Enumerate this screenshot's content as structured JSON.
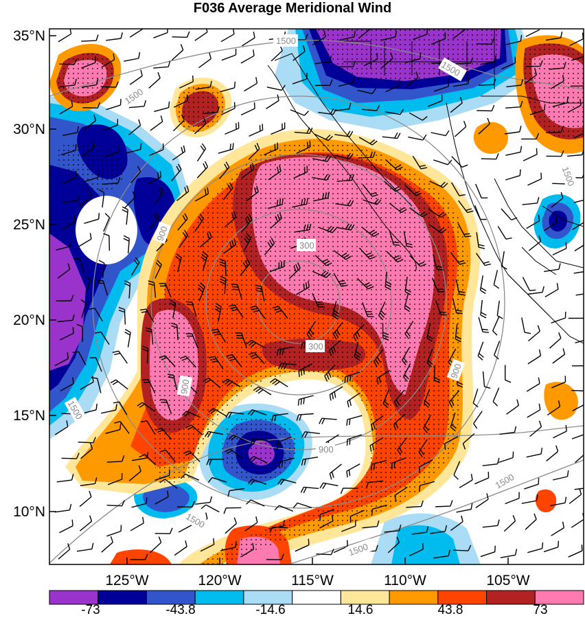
{
  "title": "F036 Average Meridional Wind",
  "lat_labels": [
    "35°N",
    "30°N",
    "25°N",
    "20°N",
    "15°N",
    "10°N"
  ],
  "lon_labels": [
    "125°W",
    "120°W",
    "115°W",
    "110°W",
    "105°W"
  ],
  "colorbar": {
    "labels": [
      "-73",
      "-43.8",
      "-14.6",
      "14.6",
      "43.8",
      "73"
    ],
    "colors": [
      "#9933cc",
      "#000099",
      "#3355cc",
      "#00bbee",
      "#aaddf5",
      "#ffffff",
      "#ffe699",
      "#ff9900",
      "#ff4400",
      "#b22222",
      "#ff7ab0"
    ]
  },
  "height_contour_labels": [
    "1500",
    "1500",
    "900",
    "300",
    "300",
    "900",
    "900",
    "900",
    "1500",
    "1500",
    "1500",
    "1500",
    "1500",
    "1500"
  ],
  "shading_colors": {
    "strong_negative": "#9933cc",
    "negative_dark": "#000099",
    "negative_mid": "#3355cc",
    "negative_light": "#00bbee",
    "negative_pale": "#aaddf5",
    "neutral": "#ffffff",
    "positive_pale": "#ffe699",
    "positive_light": "#ff9900",
    "positive_mid": "#ff4400",
    "positive_dark": "#b22222",
    "strong_positive": "#ff7ab0"
  },
  "contour_line_color": "#8a8a8a",
  "wind_barb_color": "#000000"
}
